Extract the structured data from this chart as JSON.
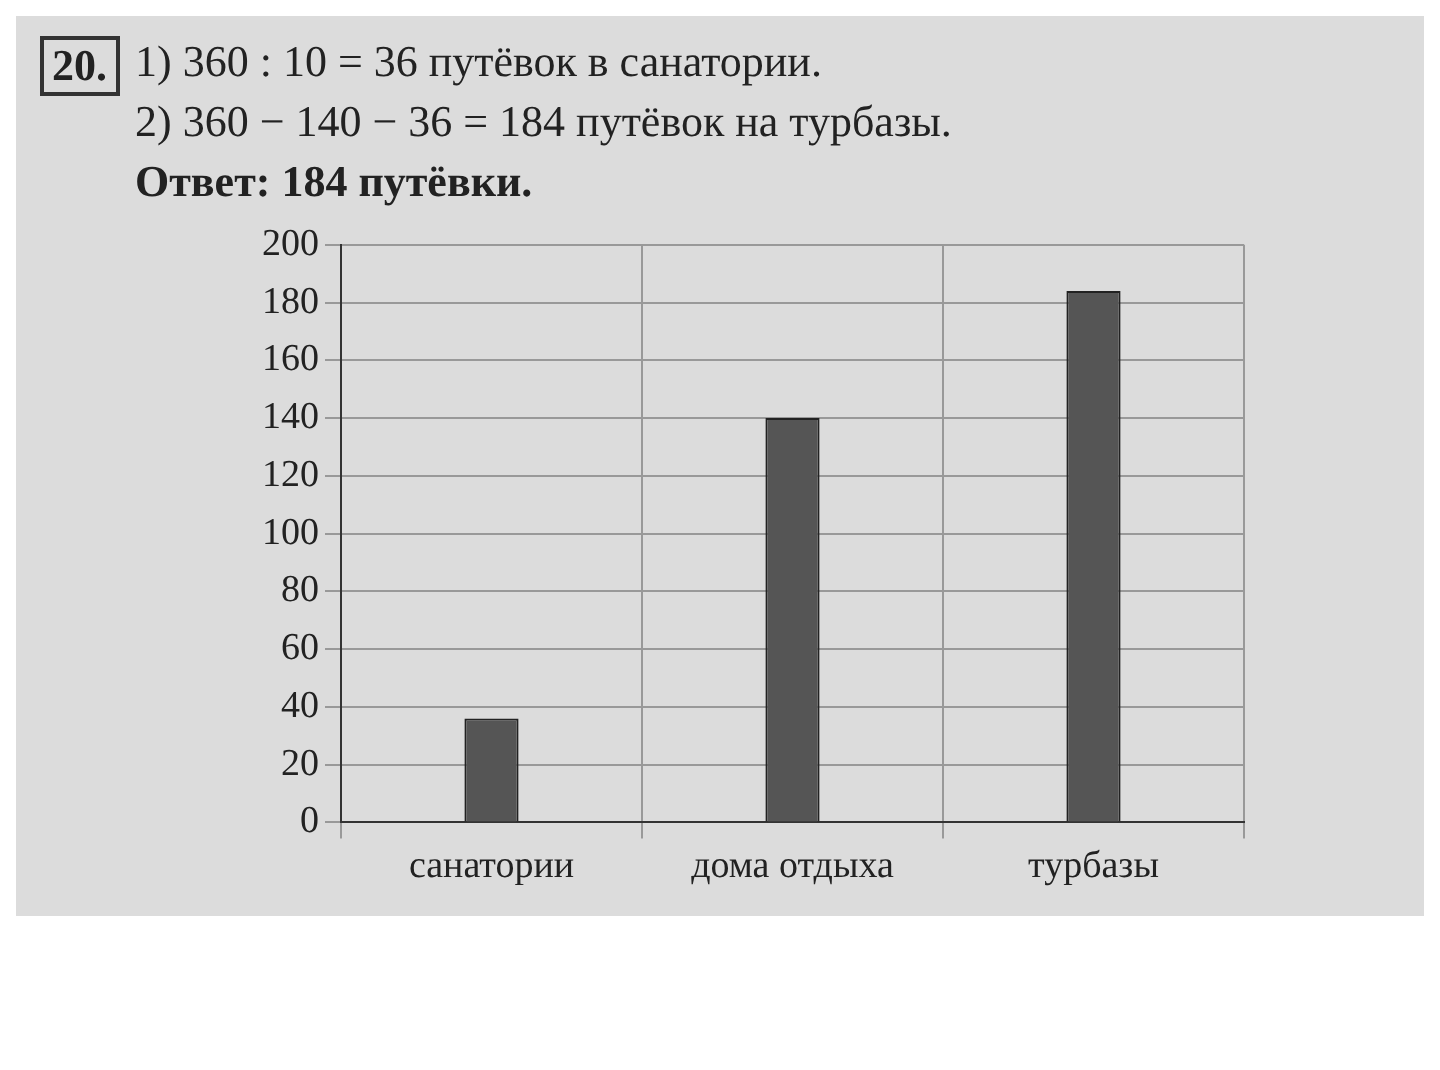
{
  "chart_data": {
    "type": "bar",
    "title": "20.",
    "annotations": [
      "1) 360 : 10 = 36 путёвок в санатории.",
      "2) 360 − 140 − 36 = 184 путёвок на турбазы.",
      "Ответ: 184 путёвки."
    ],
    "categories": [
      "санатории",
      "дома отдыха",
      "турбазы"
    ],
    "values": [
      36,
      140,
      184
    ],
    "color": "#555555",
    "ylim": [
      0,
      200
    ],
    "yticks": [
      0,
      20,
      40,
      60,
      80,
      100,
      120,
      140,
      160,
      180,
      200
    ],
    "grid": true,
    "legend": false
  }
}
